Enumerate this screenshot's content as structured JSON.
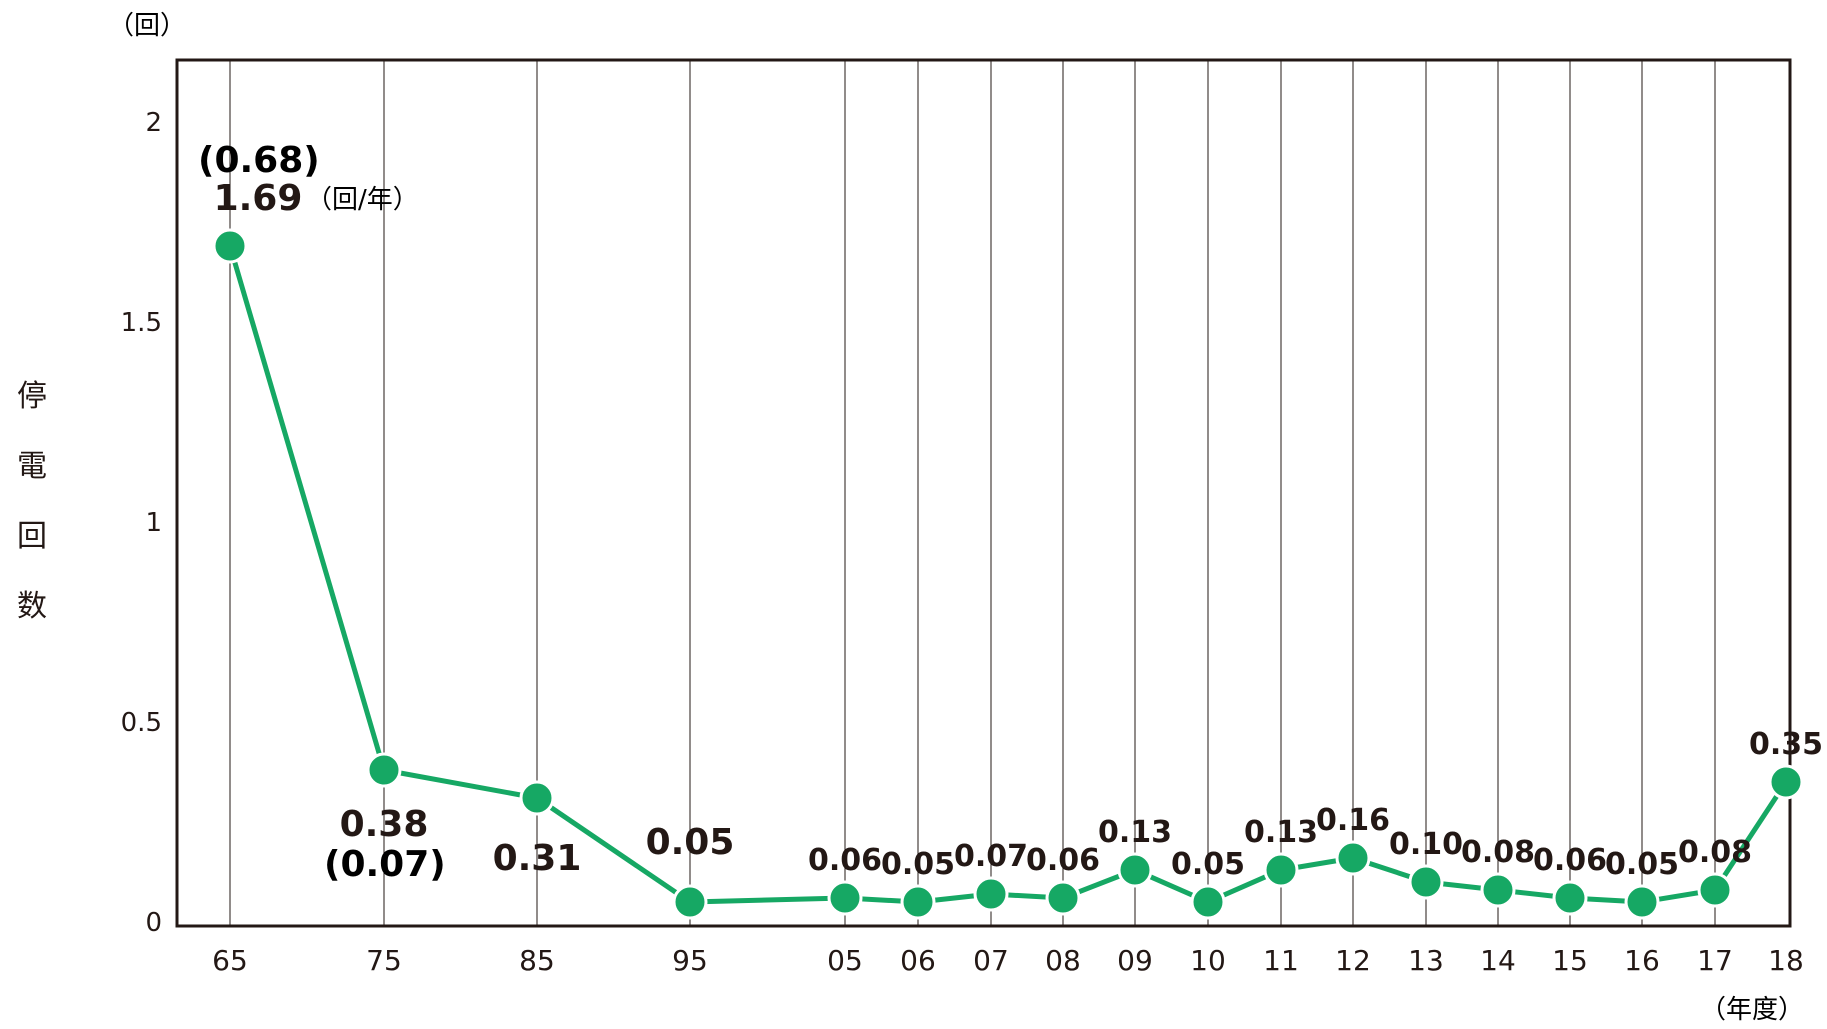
{
  "chart_data": {
    "type": "line",
    "title": "",
    "ylabel": "停電回数",
    "y_unit": "（回）",
    "x_unit": "（年度）",
    "ylim": [
      0,
      2.1
    ],
    "yticks": [
      "0",
      "0.5",
      "1",
      "1.5",
      "2"
    ],
    "grid": "vertical",
    "categories": [
      "65",
      "75",
      "85",
      "95",
      "05",
      "06",
      "07",
      "08",
      "09",
      "10",
      "11",
      "12",
      "13",
      "14",
      "15",
      "16",
      "17",
      "18"
    ],
    "series": [
      {
        "values": [
          1.69,
          0.38,
          0.31,
          0.05,
          0.06,
          0.05,
          0.07,
          0.06,
          0.13,
          0.05,
          0.13,
          0.16,
          0.1,
          0.08,
          0.06,
          0.05,
          0.08,
          0.35
        ],
        "color": "#16a864"
      }
    ],
    "data_labels": [
      "1.69",
      "0.38",
      "0.31",
      "0.05",
      "0.06",
      "0.05",
      "0.07",
      "0.06",
      "0.13",
      "0.05",
      "0.13",
      "0.16",
      "0.10",
      "0.08",
      "0.06",
      "0.05",
      "0.08",
      "0.35"
    ],
    "annotations": {
      "first_paren": "(0.68)",
      "first_unit": "（回/年）",
      "second_paren": "(0.07)"
    }
  }
}
